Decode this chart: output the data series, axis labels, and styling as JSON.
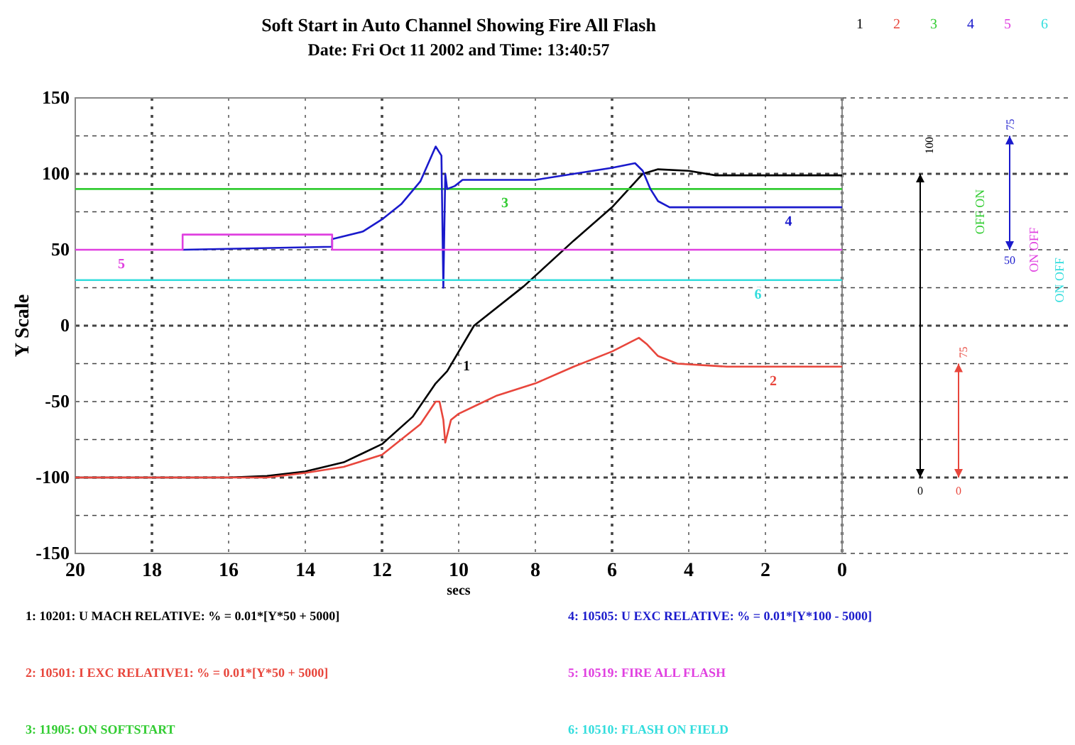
{
  "chart_data": {
    "type": "line",
    "title": "Soft Start in Auto Channel Showing Fire All Flash",
    "subtitle": "Date: Fri Oct 11 2002 and Time: 13:40:57",
    "xlabel": "secs",
    "ylabel": "Y Scale",
    "xlim": [
      20,
      0
    ],
    "xticks": [
      20,
      18,
      16,
      14,
      12,
      10,
      8,
      6,
      4,
      2,
      0
    ],
    "ylim": [
      -150,
      150
    ],
    "yticks": [
      -150,
      {
        "value": -125,
        "label": null
      },
      -100,
      {
        "value": -75,
        "label": null
      },
      -50,
      {
        "value": -25,
        "label": null
      },
      0,
      {
        "value": 25,
        "label": null
      },
      50,
      {
        "value": 75,
        "label": null
      },
      100,
      {
        "value": 125,
        "label": null
      },
      150
    ],
    "grid": true,
    "legend": "top right",
    "line_style": "solid",
    "marker": "none",
    "series": [
      {
        "name": "1",
        "color": "#000000",
        "x": [
          20,
          16,
          15,
          14,
          13,
          12,
          11.2,
          10.6,
          10.3,
          9.6,
          8.3,
          7,
          6,
          5.2,
          4.8,
          4,
          3.3,
          0
        ],
        "values": [
          -100,
          -100,
          -99,
          -96,
          -90,
          -78,
          -60,
          -38,
          -30,
          0,
          26,
          56,
          78,
          100,
          103,
          102,
          99,
          99
        ]
      },
      {
        "name": "2",
        "color": "#e8463c",
        "x": [
          20,
          15,
          14,
          13,
          12,
          11,
          10.6,
          10.5,
          10.4,
          10.35,
          10.2,
          10,
          9.5,
          9,
          8,
          7,
          6,
          5.3,
          5.1,
          4.8,
          4.3,
          3,
          0
        ],
        "values": [
          -100,
          -100,
          -97,
          -93,
          -85,
          -65,
          -50,
          -50,
          -62,
          -77,
          -62,
          -58,
          -52,
          -46,
          -38,
          -27,
          -17,
          -8,
          -12,
          -20,
          -25,
          -27,
          -27
        ]
      },
      {
        "name": "3",
        "color": "#33cc33",
        "x": [
          20,
          0
        ],
        "values": [
          90,
          90
        ]
      },
      {
        "name": "4",
        "color": "#1a1acc",
        "x": [
          17.2,
          13.3,
          13.3,
          12.5,
          12,
          11.5,
          11,
          10.6,
          10.45,
          10.4,
          10.35,
          10.3,
          10.1,
          9.9,
          9,
          8,
          7,
          6,
          5.4,
          5.2,
          5,
          4.8,
          4.5,
          0
        ],
        "values": [
          50,
          52,
          57,
          62,
          70,
          80,
          95,
          118,
          112,
          25,
          100,
          90,
          92,
          96,
          96,
          96,
          100,
          104,
          107,
          102,
          90,
          82,
          78,
          78
        ]
      },
      {
        "name": "5",
        "color": "#e040e0",
        "x": [
          20,
          17.2,
          17.2,
          13.3,
          13.3,
          0
        ],
        "values": [
          50,
          50,
          60,
          60,
          50,
          50
        ]
      },
      {
        "name": "6",
        "color": "#33dddd",
        "x": [
          20,
          0
        ],
        "values": [
          30,
          30
        ]
      }
    ],
    "annotations": [
      "1: 10201: U MACH RELATIVE: % = 0.01*[Y*50 + 5000]",
      "2: 10501: I EXC RELATIVE1: % = 0.01*[Y*50 + 5000]",
      "3: 11905: ON SOFTSTART",
      "4: 10505: U EXC RELATIVE: % = 0.01*[Y*100 - 5000]",
      "5: 10519: FIRE ALL FLASH",
      "6: 10510: FLASH ON FIELD",
      "100",
      "0",
      "75",
      "0",
      "75",
      "50",
      "OFF ON",
      "ON OFF",
      "ON OFF"
    ]
  }
}
